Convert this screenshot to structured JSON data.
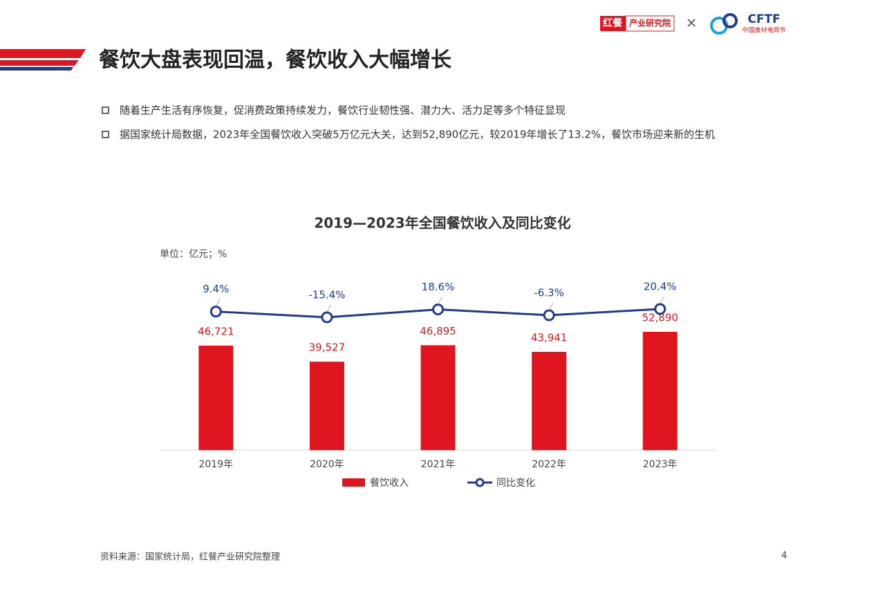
{
  "header": {
    "title": "餐饮大盘表现回温，餐饮收入大幅增长",
    "logo_brand": "红餐",
    "logo_institute": "产业研究院",
    "logo_separator": "×",
    "logo_partner": "CFTF",
    "logo_partner_sub": "中国食材电商节"
  },
  "bullets": [
    "随着生产生活有序恢复，促消费政策持续发力，餐饮行业韧性强、潜力大、活力足等多个特征显现",
    "据国家统计局数据，2023年全国餐饮收入突破5万亿元大关，达到52,890亿元，较2019年增长了13.2%，餐饮市场迎来新的生机"
  ],
  "chart_data": {
    "type": "bar-line",
    "title": "2019—2023年全国餐饮收入及同比变化",
    "unit_label": "单位：亿元；%",
    "categories": [
      "2019年",
      "2020年",
      "2021年",
      "2022年",
      "2023年"
    ],
    "series": [
      {
        "name": "餐饮收入",
        "type": "bar",
        "color": "#e0151f",
        "values": [
          46721,
          39527,
          46895,
          43941,
          52890
        ],
        "value_labels": [
          "46,721",
          "39,527",
          "46,895",
          "43,941",
          "52,890"
        ]
      },
      {
        "name": "同比变化",
        "type": "line",
        "axis": "y2",
        "color": "#1f3c8c",
        "values": [
          9.4,
          -15.4,
          18.6,
          -6.3,
          20.4
        ],
        "value_labels": [
          "9.4%",
          "-15.4%",
          "18.6%",
          "-6.3%",
          "20.4%"
        ]
      }
    ]
  },
  "footer": {
    "source": "资料来源：国家统计局，红餐产业研究院整理",
    "page": "4"
  }
}
